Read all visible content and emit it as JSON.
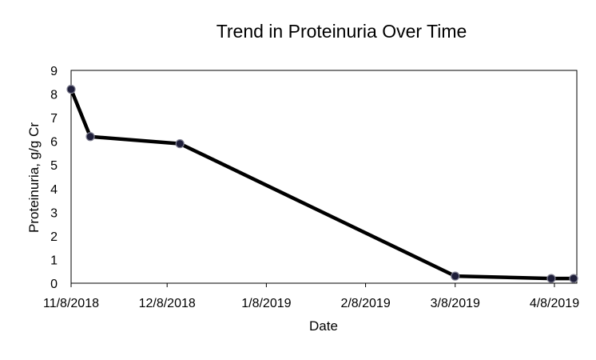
{
  "chart_data": {
    "type": "line",
    "title": "Trend in Proteinuria Over Time",
    "xlabel": "Date",
    "ylabel": "Proteinuria, g/g Cr",
    "xlim": [
      "2018-11-08",
      "2019-04-15"
    ],
    "ylim": [
      0,
      9
    ],
    "y_ticks": [
      "0",
      "1",
      "2",
      "3",
      "4",
      "5",
      "6",
      "7",
      "8",
      "9"
    ],
    "x_ticks": [
      {
        "date": "2018-11-08",
        "label": "11/8/2018"
      },
      {
        "date": "2018-12-08",
        "label": "12/8/2018"
      },
      {
        "date": "2019-01-08",
        "label": "1/8/2019"
      },
      {
        "date": "2019-02-08",
        "label": "2/8/2019"
      },
      {
        "date": "2019-03-08",
        "label": "3/8/2019"
      },
      {
        "date": "2019-04-08",
        "label": "4/8/2019"
      }
    ],
    "series": [
      {
        "color": "#000000",
        "marker_color": "#1f1f3a",
        "points": [
          {
            "x": "2018-11-08",
            "y": 8.2
          },
          {
            "x": "2018-11-14",
            "y": 6.2
          },
          {
            "x": "2018-12-12",
            "y": 5.9
          },
          {
            "x": "2019-03-08",
            "y": 0.3
          },
          {
            "x": "2019-04-07",
            "y": 0.2
          },
          {
            "x": "2019-04-14",
            "y": 0.2
          }
        ]
      }
    ],
    "grid": false,
    "legend": "none"
  }
}
